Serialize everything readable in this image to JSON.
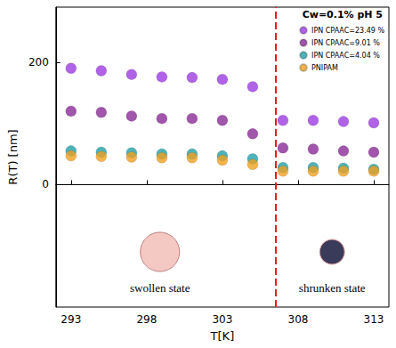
{
  "chart_data": {
    "type": "scatter",
    "title": "Cw=0.1% pH 5",
    "x_label": "T[K]",
    "y_label": "R(T) [nm]",
    "x": [
      293,
      295,
      297,
      299,
      301,
      303,
      305,
      307,
      309,
      311,
      313
    ],
    "series": [
      {
        "name": "IPN CPAAC=23.49 %",
        "color": "#9c3ce0",
        "values": [
          190,
          186,
          180,
          176,
          175,
          172,
          160,
          105,
          105,
          103,
          101
        ]
      },
      {
        "name": "IPN CPAAC=9.01 %",
        "color": "#8a2a96",
        "values": [
          120,
          118,
          112,
          108,
          108,
          105,
          83,
          60,
          58,
          55,
          53
        ]
      },
      {
        "name": "IPN CPAAC=4.04 %",
        "color": "#20a0a6",
        "values": [
          55,
          53,
          52,
          50,
          50,
          47,
          42,
          28,
          28,
          27,
          25
        ]
      },
      {
        "name": "PNIPAM",
        "color": "#f0a020",
        "values": [
          47,
          46,
          45,
          44,
          44,
          40,
          33,
          22,
          22,
          22,
          22
        ]
      }
    ],
    "xlim": [
      292,
      314
    ],
    "xticks": [
      293,
      298,
      303,
      308,
      313
    ],
    "ylim": [
      -200,
      290
    ],
    "yticks": [
      0,
      200
    ],
    "vline": 306.5,
    "annotations": [
      "swollen state",
      "shrunken state"
    ],
    "marker": "circle",
    "legend": "top-right",
    "grid": false
  }
}
